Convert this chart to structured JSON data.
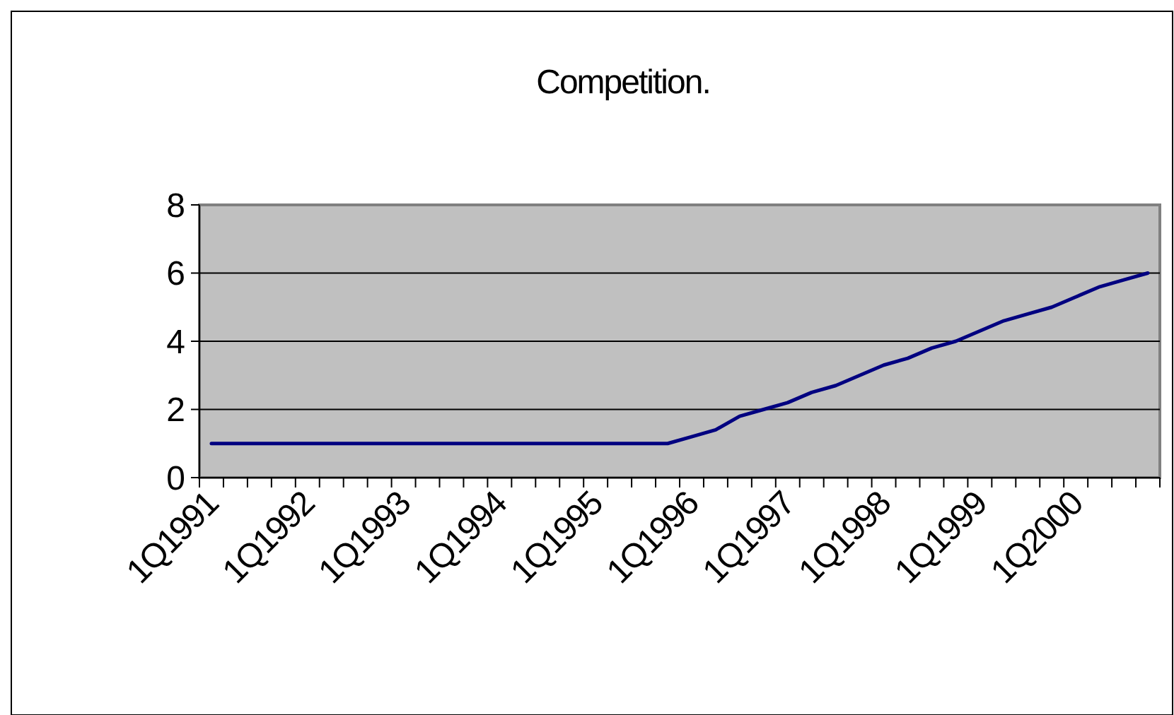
{
  "chart_data": {
    "type": "line",
    "title": "Competition.",
    "categories": [
      "1Q1991",
      null,
      null,
      null,
      "1Q1992",
      null,
      null,
      null,
      "1Q1993",
      null,
      null,
      null,
      "1Q1994",
      null,
      null,
      null,
      "1Q1995",
      null,
      null,
      null,
      "1Q1996",
      null,
      null,
      null,
      "1Q1997",
      null,
      null,
      null,
      "1Q1998",
      null,
      null,
      null,
      "1Q1999",
      null,
      null,
      null,
      "1Q2000",
      null,
      null,
      null
    ],
    "series": [
      {
        "color": "#000080",
        "values": [
          1,
          1,
          1,
          1,
          1,
          1,
          1,
          1,
          1,
          1,
          1,
          1,
          1,
          1,
          1,
          1,
          1,
          1,
          1,
          1,
          1.2,
          1.4,
          1.8,
          2,
          2.2,
          2.5,
          2.7,
          3,
          3.3,
          3.5,
          3.8,
          4,
          4.3,
          4.6,
          4.8,
          5,
          5.3,
          5.6,
          5.8,
          6
        ]
      }
    ],
    "ylim": [
      0,
      8
    ],
    "yticks": [
      0,
      2,
      4,
      6,
      8
    ],
    "grid": "y",
    "marker": "none",
    "line_style": "solid"
  }
}
